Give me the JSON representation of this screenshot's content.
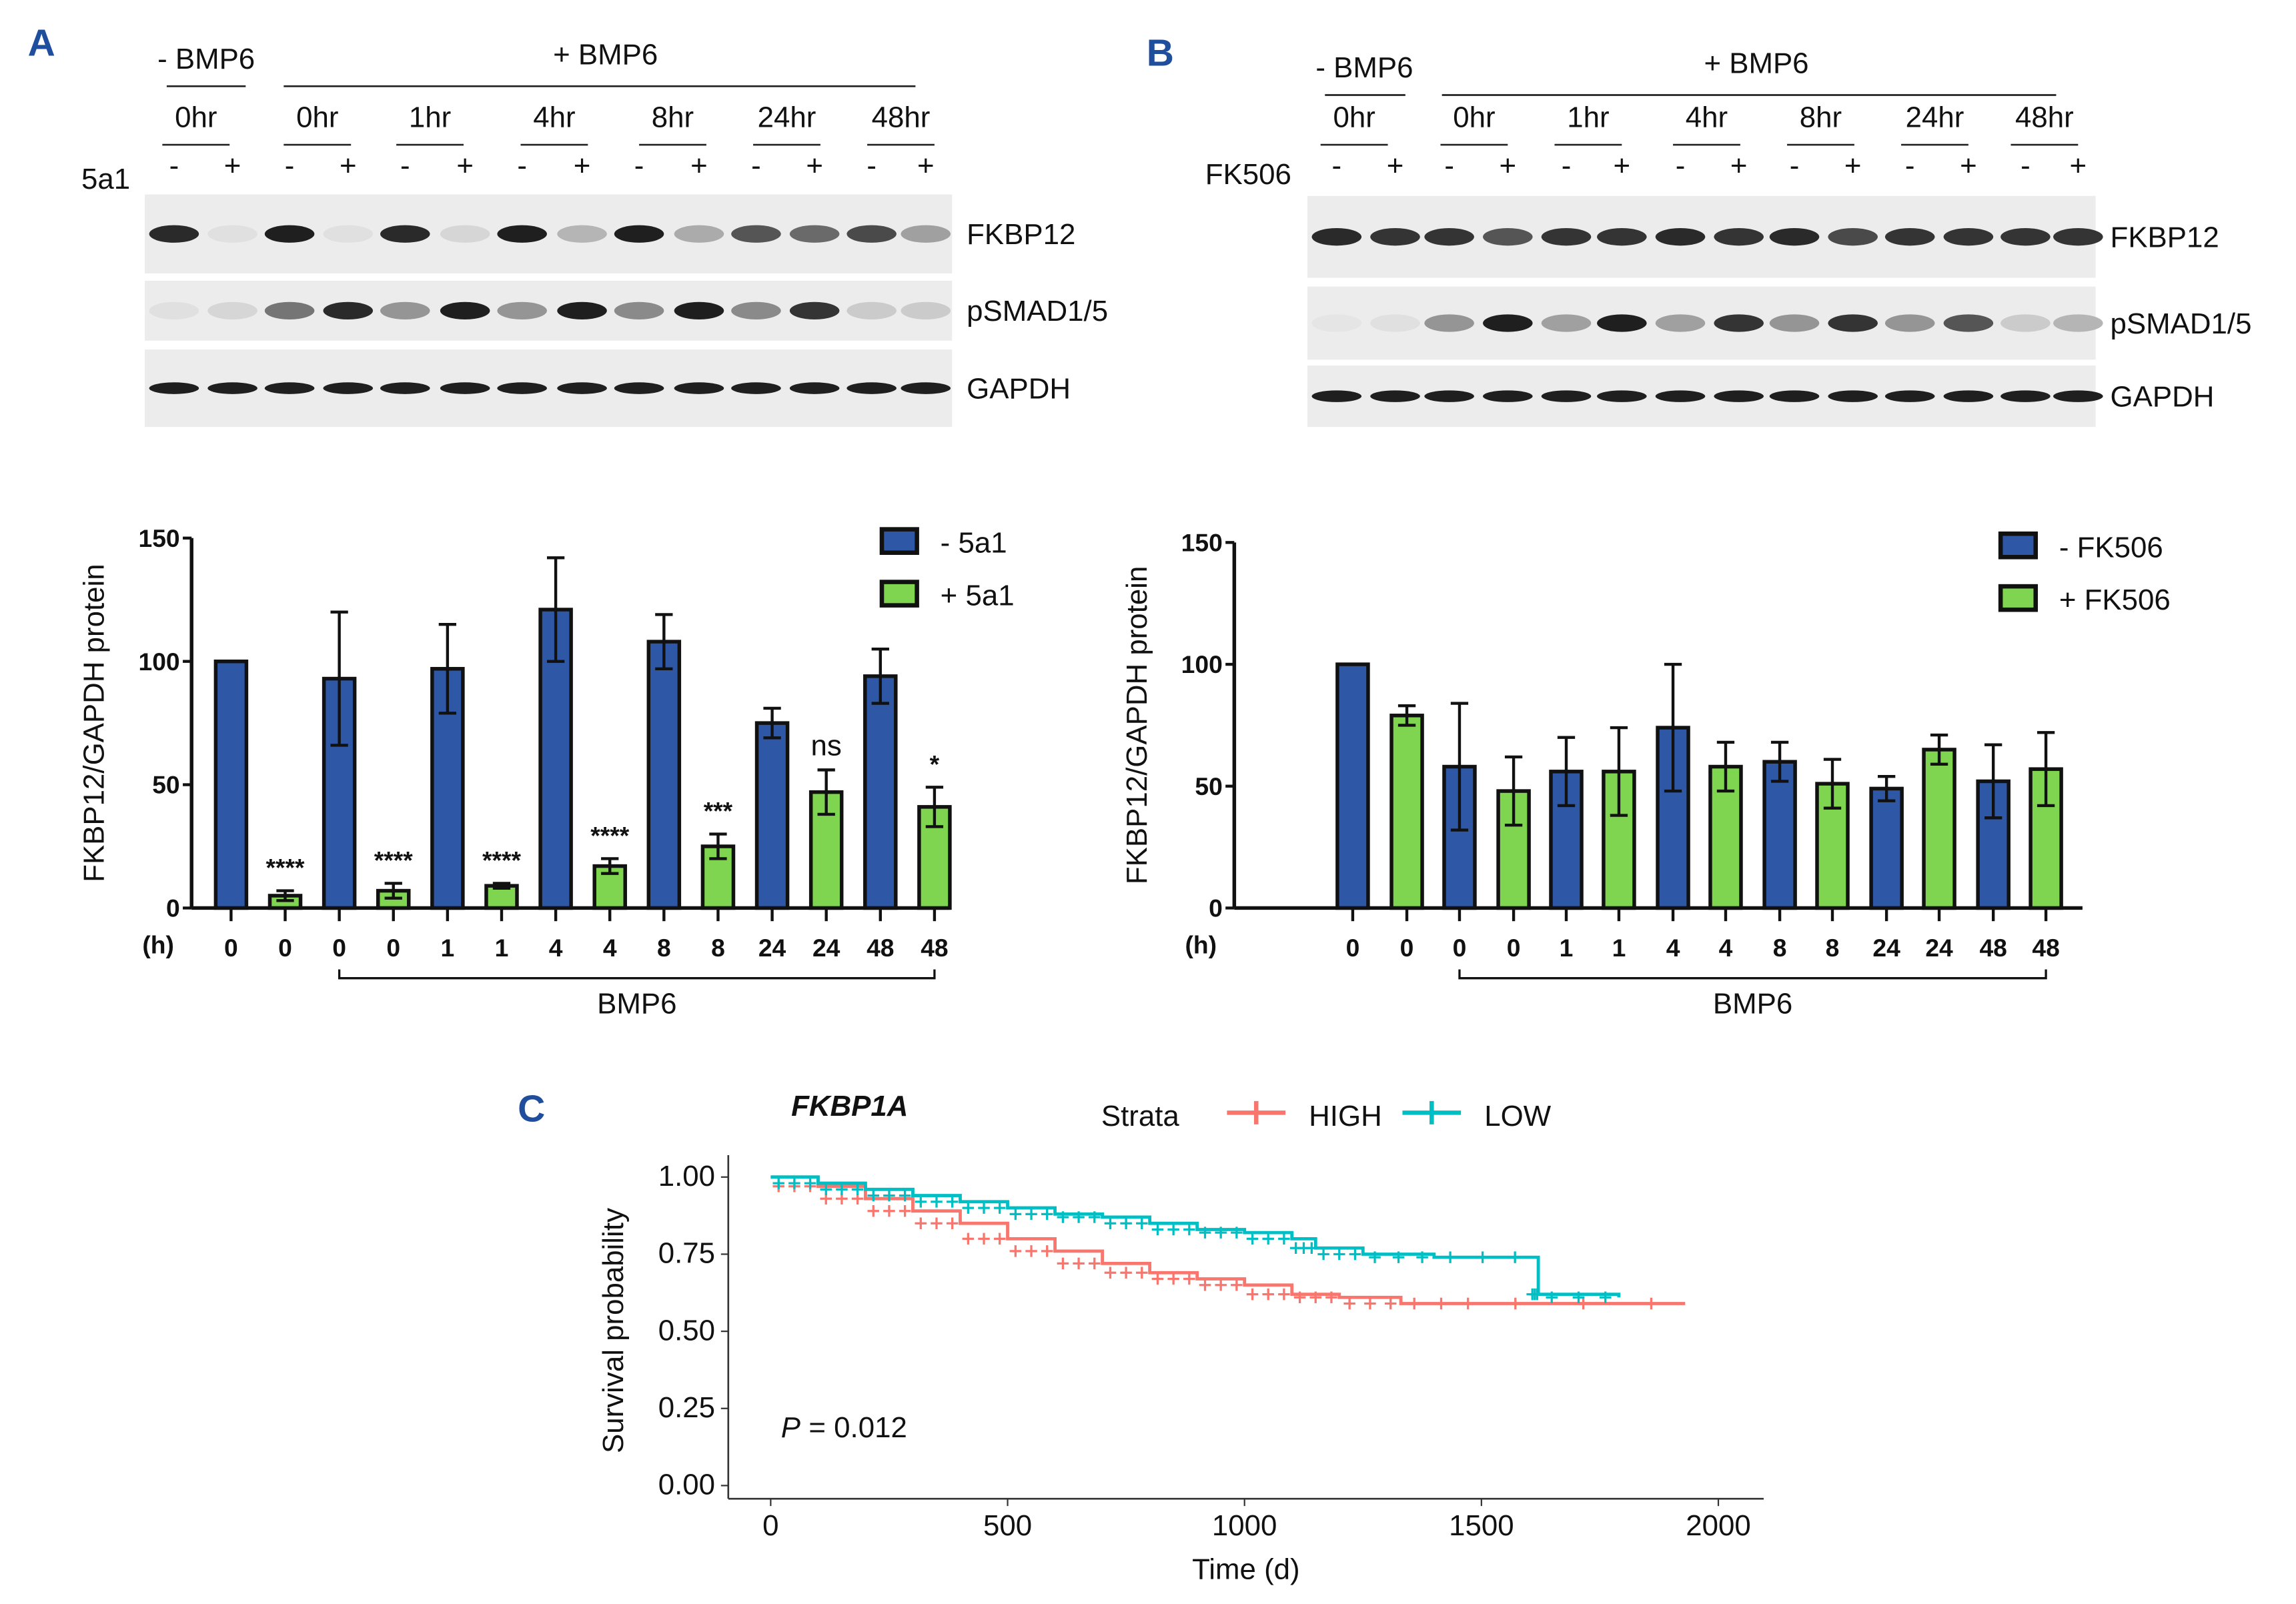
{
  "panels": {
    "a": "A",
    "b": "B",
    "c": "C"
  },
  "blot_a": {
    "minus_bmp6": "- BMP6",
    "plus_bmp6": "+ BMP6",
    "times": [
      "0hr",
      "0hr",
      "1hr",
      "4hr",
      "8hr",
      "24hr",
      "48hr"
    ],
    "treatment": "5a1",
    "signs": [
      "-",
      "+",
      "-",
      "+",
      "-",
      "+",
      "-",
      "+",
      "-",
      "+",
      "-",
      "+",
      "-",
      "+"
    ],
    "rows": [
      "FKBP12",
      "pSMAD1/5",
      "GAPDH"
    ],
    "band_intensity": [
      [
        0.9,
        0.05,
        0.95,
        0.05,
        0.9,
        0.1,
        0.95,
        0.25,
        0.95,
        0.3,
        0.7,
        0.6,
        0.75,
        0.35
      ],
      [
        0.05,
        0.1,
        0.55,
        0.9,
        0.4,
        0.95,
        0.4,
        0.95,
        0.45,
        0.95,
        0.45,
        0.85,
        0.15,
        0.15
      ],
      [
        0.95,
        0.95,
        0.95,
        0.95,
        0.95,
        0.95,
        0.95,
        0.95,
        0.95,
        0.95,
        0.95,
        0.95,
        0.95,
        0.95
      ]
    ]
  },
  "blot_b": {
    "minus_bmp6": "- BMP6",
    "plus_bmp6": "+ BMP6",
    "times": [
      "0hr",
      "0hr",
      "1hr",
      "4hr",
      "8hr",
      "24hr",
      "48hr"
    ],
    "treatment": "FK506",
    "signs": [
      "-",
      "+",
      "-",
      "+",
      "-",
      "+",
      "-",
      "+",
      "-",
      "+",
      "-",
      "+",
      "-",
      "+"
    ],
    "rows": [
      "FKBP12",
      "pSMAD1/5",
      "GAPDH"
    ],
    "band_intensity": [
      [
        0.9,
        0.85,
        0.85,
        0.7,
        0.85,
        0.85,
        0.9,
        0.85,
        0.9,
        0.75,
        0.85,
        0.85,
        0.85,
        0.85
      ],
      [
        0.03,
        0.05,
        0.4,
        0.95,
        0.35,
        0.95,
        0.35,
        0.85,
        0.4,
        0.85,
        0.4,
        0.7,
        0.15,
        0.25
      ],
      [
        0.95,
        0.95,
        0.95,
        0.95,
        0.95,
        0.95,
        0.95,
        0.95,
        0.95,
        0.95,
        0.95,
        0.95,
        0.95,
        0.95
      ]
    ]
  },
  "chart_data": [
    {
      "type": "bar",
      "ylabel": "FKBP12/GAPDH protein",
      "xlabel_unit": "(h)",
      "bracket_label": "BMP6",
      "ylim": [
        0,
        150
      ],
      "yticks": [
        0,
        50,
        100,
        150
      ],
      "categories": [
        "0",
        "0",
        "0",
        "0",
        "1",
        "1",
        "4",
        "4",
        "8",
        "8",
        "24",
        "24",
        "48",
        "48"
      ],
      "groups": [
        "-",
        "+",
        "-",
        "+",
        "-",
        "+",
        "-",
        "+",
        "-",
        "+",
        "-",
        "+",
        "-",
        "+"
      ],
      "values": [
        100,
        5,
        93,
        7,
        97,
        9,
        121,
        17,
        108,
        25,
        75,
        47,
        94,
        41
      ],
      "errors": [
        0,
        2,
        27,
        3,
        18,
        1,
        21,
        3,
        11,
        5,
        6,
        9,
        11,
        8
      ],
      "annotations": [
        "",
        "****",
        "",
        "****",
        "",
        "****",
        "",
        "****",
        "",
        "***",
        "",
        "ns",
        "",
        "*"
      ],
      "legend": [
        {
          "name": "- 5a1",
          "color": "#2e58a6"
        },
        {
          "name": "+ 5a1",
          "color": "#7fd450"
        }
      ],
      "legend_position": "top-right"
    },
    {
      "type": "bar",
      "ylabel": "FKBP12/GAPDH protein",
      "xlabel_unit": "(h)",
      "bracket_label": "BMP6",
      "ylim": [
        0,
        150
      ],
      "yticks": [
        0,
        50,
        100,
        150
      ],
      "categories": [
        "0",
        "0",
        "0",
        "0",
        "1",
        "1",
        "4",
        "4",
        "8",
        "8",
        "24",
        "24",
        "48",
        "48"
      ],
      "groups": [
        "-",
        "+",
        "-",
        "+",
        "-",
        "+",
        "-",
        "+",
        "-",
        "+",
        "-",
        "+",
        "-",
        "+"
      ],
      "values": [
        100,
        79,
        58,
        48,
        56,
        56,
        74,
        58,
        60,
        51,
        49,
        65,
        52,
        57
      ],
      "errors": [
        0,
        4,
        26,
        14,
        14,
        18,
        26,
        10,
        8,
        10,
        5,
        6,
        15,
        15
      ],
      "legend": [
        {
          "name": "- FK506",
          "color": "#2e58a6"
        },
        {
          "name": "+ FK506",
          "color": "#7fd450"
        }
      ],
      "legend_position": "top-right"
    },
    {
      "type": "line",
      "title": "FKBP1A",
      "legend_title": "Strata",
      "xlabel": "Time (d)",
      "ylabel": "Survival probability",
      "xlim": [
        0,
        2000
      ],
      "ylim": [
        0,
        1
      ],
      "xticks": [
        0,
        500,
        1000,
        1500,
        2000
      ],
      "yticks": [
        "0.00",
        "0.25",
        "0.50",
        "0.75",
        "1.00"
      ],
      "pvalue_label": "P",
      "pvalue": "= 0.012",
      "series": [
        {
          "name": "HIGH",
          "color": "#f8766d",
          "x": [
            0,
            100,
            200,
            300,
            400,
            500,
            600,
            700,
            800,
            900,
            1000,
            1100,
            1200,
            1330,
            1500,
            1930
          ],
          "y": [
            1.0,
            0.97,
            0.93,
            0.89,
            0.85,
            0.8,
            0.76,
            0.72,
            0.69,
            0.67,
            0.65,
            0.62,
            0.61,
            0.59,
            0.59,
            0.59
          ]
        },
        {
          "name": "LOW",
          "color": "#00bfc4",
          "x": [
            0,
            100,
            200,
            300,
            400,
            500,
            600,
            700,
            800,
            900,
            1000,
            1100,
            1150,
            1250,
            1400,
            1605,
            1620,
            1790
          ],
          "y": [
            1.0,
            0.98,
            0.96,
            0.94,
            0.92,
            0.9,
            0.88,
            0.87,
            0.85,
            0.83,
            0.82,
            0.8,
            0.77,
            0.75,
            0.74,
            0.74,
            0.62,
            0.61
          ]
        }
      ]
    }
  ]
}
